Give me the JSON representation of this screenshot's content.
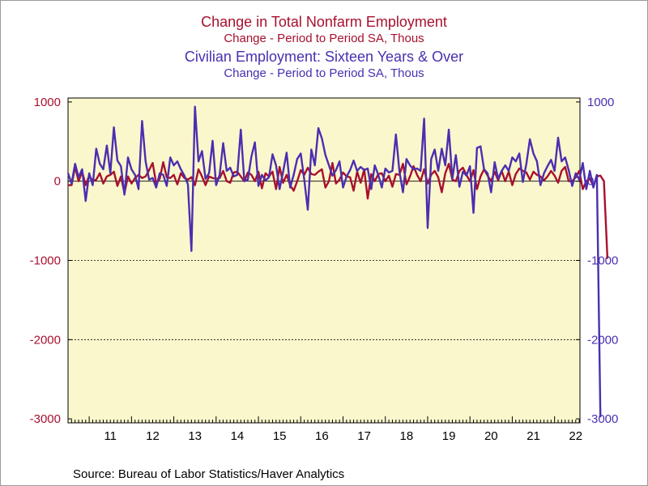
{
  "titles": {
    "series1_title": "Change in Total Nonfarm Employment",
    "series1_subtitle": "Change - Period to Period    SA, Thous",
    "series2_title": "Civilian Employment: Sixteen Years & Over",
    "series2_subtitle": "Change - Period to Period    SA, Thous"
  },
  "source": "Source:  Bureau of Labor Statistics/Haver Analytics",
  "colors": {
    "nonfarm": "#a8102e",
    "civilian": "#4a2fb0",
    "plot_background": "#fbf7cd",
    "grid": "#000000"
  },
  "chart_data": {
    "type": "line",
    "x_tick_labels": [
      "11",
      "12",
      "13",
      "14",
      "15",
      "16",
      "17",
      "18",
      "19",
      "20",
      "21",
      "22"
    ],
    "xlim": [
      2010.5,
      2022.6
    ],
    "y_left": {
      "lim": [
        -3050,
        1050
      ],
      "ticks": [
        1000,
        0,
        -1000,
        -2000,
        -3000
      ],
      "tick_labels": [
        "1000",
        "0",
        "-1000",
        "-2000",
        "-3000"
      ],
      "color": "#a8102e"
    },
    "y_right": {
      "lim": [
        -3050,
        1050
      ],
      "ticks": [
        1000,
        0,
        -1000,
        -2000,
        -3000
      ],
      "tick_labels": [
        "1000",
        "0",
        "-1000",
        "-2000",
        "-3000"
      ],
      "color": "#4a2fb0"
    },
    "gridlines": [
      0,
      -1000,
      -2000
    ],
    "legend": "none (series identified by colored titles)",
    "series": [
      {
        "name": "Change in Total Nonfarm Employment",
        "color": "#a8102e",
        "start": 2010.5,
        "step_years": 0.0833333,
        "values": [
          -50,
          -50,
          180,
          0,
          120,
          -50,
          70,
          0,
          20,
          100,
          -30,
          60,
          80,
          120,
          -60,
          60,
          -150,
          60,
          -30,
          40,
          80,
          40,
          60,
          140,
          230,
          -30,
          30,
          240,
          50,
          40,
          80,
          -40,
          100,
          40,
          20,
          50,
          -50,
          150,
          60,
          -50,
          60,
          40,
          30,
          40,
          130,
          0,
          -20,
          110,
          120,
          60,
          0,
          110,
          80,
          0,
          120,
          -90,
          100,
          60,
          120,
          -100,
          180,
          -20,
          80,
          -50,
          -120,
          0,
          140,
          80,
          170,
          90,
          80,
          120,
          150,
          -80,
          0,
          230,
          -30,
          20,
          110,
          60,
          50,
          -120,
          120,
          -20,
          150,
          -220,
          90,
          0,
          90,
          100,
          0,
          70,
          -70,
          90,
          80,
          220,
          -40,
          60,
          190,
          80,
          0,
          150,
          -30,
          80,
          130,
          50,
          -140,
          100,
          220,
          20,
          0,
          130,
          170,
          80,
          0,
          140,
          -100,
          60,
          150,
          70,
          0,
          120,
          10,
          130,
          0,
          120,
          -50,
          90,
          160,
          130,
          110,
          20,
          120,
          80,
          60,
          10,
          60,
          130,
          70,
          -20,
          130,
          180,
          0,
          0,
          50,
          130,
          -100,
          0,
          30,
          -60,
          60,
          70,
          0,
          -980
        ]
      },
      {
        "name": "Civilian Employment: Sixteen Years & Over",
        "color": "#4a2fb0",
        "start": 2010.5,
        "step_years": 0.0833333,
        "values": [
          100,
          -30,
          220,
          50,
          150,
          -250,
          100,
          -50,
          410,
          220,
          150,
          450,
          100,
          680,
          260,
          190,
          -170,
          300,
          150,
          80,
          -100,
          760,
          250,
          20,
          40,
          -80,
          100,
          80,
          -60,
          300,
          200,
          250,
          150,
          70,
          -40,
          -880,
          940,
          250,
          380,
          30,
          100,
          510,
          -50,
          80,
          480,
          130,
          170,
          60,
          80,
          650,
          0,
          20,
          310,
          490,
          -60,
          80,
          10,
          50,
          340,
          200,
          -100,
          120,
          360,
          -80,
          80,
          280,
          350,
          20,
          -360,
          400,
          200,
          670,
          540,
          330,
          200,
          70,
          140,
          250,
          -80,
          60,
          140,
          260,
          130,
          180,
          140,
          160,
          -100,
          200,
          80,
          -80,
          160,
          110,
          130,
          590,
          120,
          -140,
          280,
          200,
          150,
          160,
          130,
          790,
          -590,
          280,
          400,
          130,
          410,
          200,
          650,
          30,
          330,
          -70,
          120,
          70,
          190,
          -400,
          420,
          440,
          150,
          100,
          -140,
          240,
          30,
          130,
          200,
          130,
          300,
          250,
          350,
          -10,
          220,
          530,
          350,
          250,
          -50,
          100,
          190,
          270,
          130,
          550,
          250,
          300,
          140,
          -60,
          100,
          20,
          230,
          -100,
          130,
          -80,
          80,
          -2980
        ]
      }
    ]
  }
}
